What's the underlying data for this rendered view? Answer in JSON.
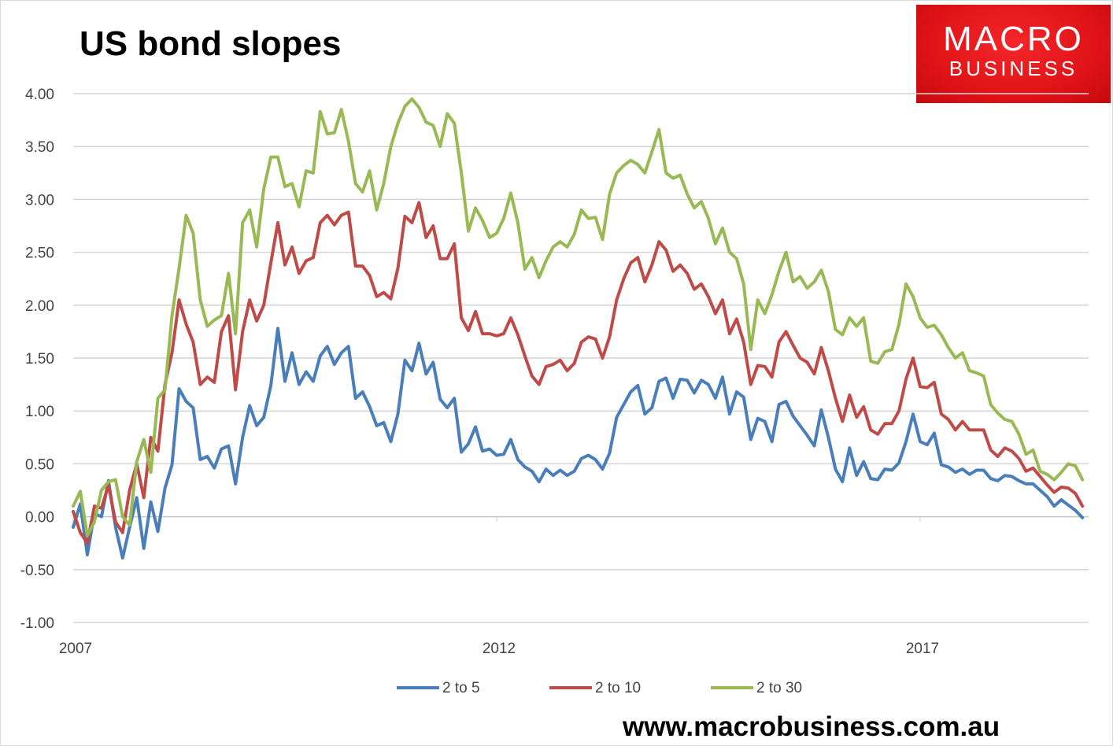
{
  "chart_data": {
    "type": "line",
    "title": "US bond slopes",
    "xlabel": "",
    "ylabel": "",
    "x_start": 2007,
    "x_step_years": 0.08333,
    "ylim": [
      -1.0,
      4.0
    ],
    "yticks": [
      "4.00",
      "3.50",
      "3.00",
      "2.50",
      "2.00",
      "1.50",
      "1.00",
      "0.50",
      "0.00",
      "-0.50",
      "-1.00"
    ],
    "ytick_values": [
      4,
      3.5,
      3,
      2.5,
      2,
      1.5,
      1,
      0.5,
      0,
      -0.5,
      -1
    ],
    "xticks": [
      "2007",
      "2012",
      "2017"
    ],
    "xtick_values": [
      2007,
      2012,
      2017
    ],
    "grid": true,
    "legend_position": "bottom",
    "series": [
      {
        "name": "2 to 5",
        "color": "#4a7ebb",
        "values": [
          -0.1,
          0.12,
          -0.36,
          0.03,
          0.0,
          0.34,
          -0.1,
          -0.39,
          -0.1,
          0.18,
          -0.3,
          0.14,
          -0.14,
          0.27,
          0.49,
          1.21,
          1.09,
          1.03,
          0.54,
          0.57,
          0.46,
          0.64,
          0.67,
          0.31,
          0.75,
          1.05,
          0.86,
          0.94,
          1.24,
          1.78,
          1.28,
          1.55,
          1.25,
          1.37,
          1.28,
          1.52,
          1.61,
          1.44,
          1.55,
          1.61,
          1.12,
          1.18,
          1.04,
          0.86,
          0.89,
          0.71,
          0.97,
          1.48,
          1.38,
          1.64,
          1.35,
          1.46,
          1.11,
          1.03,
          1.12,
          0.61,
          0.69,
          0.85,
          0.62,
          0.64,
          0.58,
          0.59,
          0.73,
          0.54,
          0.47,
          0.43,
          0.33,
          0.45,
          0.39,
          0.44,
          0.39,
          0.43,
          0.55,
          0.58,
          0.54,
          0.45,
          0.6,
          0.94,
          1.06,
          1.18,
          1.24,
          0.97,
          1.03,
          1.28,
          1.31,
          1.12,
          1.3,
          1.29,
          1.17,
          1.29,
          1.25,
          1.12,
          1.32,
          0.97,
          1.18,
          1.13,
          0.73,
          0.93,
          0.9,
          0.71,
          1.06,
          1.09,
          0.95,
          0.86,
          0.77,
          0.67,
          1.01,
          0.75,
          0.45,
          0.33,
          0.65,
          0.39,
          0.52,
          0.36,
          0.35,
          0.45,
          0.44,
          0.51,
          0.71,
          0.97,
          0.71,
          0.68,
          0.79,
          0.49,
          0.47,
          0.42,
          0.45,
          0.4,
          0.44,
          0.44,
          0.36,
          0.34,
          0.39,
          0.38,
          0.34,
          0.31,
          0.31,
          0.25,
          0.19,
          0.1,
          0.16,
          0.11,
          0.06,
          -0.01
        ]
      },
      {
        "name": "2 to 10",
        "color": "#be4b48",
        "values": [
          0.05,
          -0.15,
          -0.25,
          0.1,
          0.08,
          0.3,
          -0.05,
          -0.15,
          0.25,
          0.5,
          0.18,
          0.75,
          0.62,
          1.25,
          1.55,
          2.05,
          1.82,
          1.65,
          1.25,
          1.32,
          1.27,
          1.75,
          1.9,
          1.2,
          1.75,
          2.05,
          1.85,
          2.0,
          2.4,
          2.78,
          2.38,
          2.55,
          2.3,
          2.42,
          2.45,
          2.78,
          2.85,
          2.76,
          2.85,
          2.88,
          2.37,
          2.37,
          2.28,
          2.08,
          2.12,
          2.06,
          2.35,
          2.84,
          2.78,
          2.97,
          2.64,
          2.75,
          2.44,
          2.44,
          2.58,
          1.88,
          1.76,
          1.94,
          1.73,
          1.73,
          1.71,
          1.73,
          1.88,
          1.72,
          1.52,
          1.33,
          1.25,
          1.42,
          1.44,
          1.48,
          1.38,
          1.45,
          1.65,
          1.7,
          1.68,
          1.5,
          1.7,
          2.05,
          2.25,
          2.4,
          2.45,
          2.22,
          2.38,
          2.6,
          2.52,
          2.32,
          2.38,
          2.3,
          2.15,
          2.2,
          2.08,
          1.92,
          2.05,
          1.73,
          1.87,
          1.65,
          1.25,
          1.43,
          1.42,
          1.32,
          1.65,
          1.75,
          1.62,
          1.5,
          1.46,
          1.35,
          1.6,
          1.38,
          1.12,
          0.9,
          1.15,
          0.94,
          1.04,
          0.82,
          0.78,
          0.88,
          0.88,
          1.0,
          1.3,
          1.5,
          1.23,
          1.22,
          1.27,
          0.97,
          0.92,
          0.82,
          0.9,
          0.82,
          0.82,
          0.82,
          0.63,
          0.57,
          0.65,
          0.62,
          0.55,
          0.43,
          0.46,
          0.38,
          0.3,
          0.23,
          0.28,
          0.27,
          0.22,
          0.1
        ]
      },
      {
        "name": "2 to 30",
        "color": "#98b954",
        "values": [
          0.1,
          0.24,
          -0.18,
          -0.05,
          0.25,
          0.33,
          0.35,
          0.0,
          -0.08,
          0.52,
          0.73,
          0.42,
          1.12,
          1.2,
          1.9,
          2.35,
          2.85,
          2.68,
          2.05,
          1.8,
          1.86,
          1.9,
          2.3,
          1.73,
          2.78,
          2.9,
          2.55,
          3.1,
          3.4,
          3.4,
          3.12,
          3.15,
          2.93,
          3.27,
          3.25,
          3.83,
          3.62,
          3.63,
          3.85,
          3.55,
          3.15,
          3.07,
          3.27,
          2.9,
          3.15,
          3.5,
          3.72,
          3.88,
          3.95,
          3.87,
          3.73,
          3.7,
          3.5,
          3.81,
          3.72,
          3.25,
          2.7,
          2.92,
          2.8,
          2.64,
          2.68,
          2.82,
          3.06,
          2.78,
          2.34,
          2.45,
          2.26,
          2.42,
          2.55,
          2.6,
          2.55,
          2.67,
          2.9,
          2.82,
          2.83,
          2.62,
          3.05,
          3.25,
          3.32,
          3.37,
          3.33,
          3.25,
          3.45,
          3.66,
          3.25,
          3.2,
          3.23,
          3.05,
          2.92,
          2.98,
          2.82,
          2.58,
          2.73,
          2.5,
          2.44,
          2.2,
          1.58,
          2.05,
          1.92,
          2.1,
          2.32,
          2.5,
          2.22,
          2.27,
          2.16,
          2.22,
          2.33,
          2.13,
          1.77,
          1.72,
          1.88,
          1.8,
          1.88,
          1.47,
          1.45,
          1.56,
          1.58,
          1.82,
          2.2,
          2.08,
          1.88,
          1.79,
          1.81,
          1.72,
          1.6,
          1.5,
          1.55,
          1.38,
          1.36,
          1.33,
          1.06,
          0.98,
          0.92,
          0.9,
          0.78,
          0.59,
          0.63,
          0.43,
          0.4,
          0.35,
          0.42,
          0.5,
          0.48,
          0.35
        ]
      }
    ]
  },
  "logo": {
    "line1": "MACRO",
    "line2": "BUSINESS"
  },
  "footer": "www.macrobusiness.com.au"
}
